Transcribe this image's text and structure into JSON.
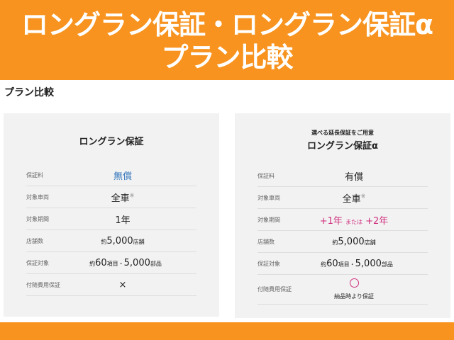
{
  "header": {
    "title_line1": "ロングラン保証・ロングラン保証α",
    "title_line2": "プラン比較"
  },
  "section_title": "プラン比較",
  "colors": {
    "brand_orange": "#f7931e",
    "blue": "#3a7bbf",
    "pink": "#d0317f"
  },
  "plans": [
    {
      "subtitle": "",
      "title": "ロングラン保証",
      "rows": [
        {
          "label": "保証料",
          "value": "無償"
        },
        {
          "label": "対象車両",
          "value": "全車",
          "note": "※"
        },
        {
          "label": "対象期間",
          "value": "1年"
        },
        {
          "label": "店舗数",
          "prefix": "約",
          "value": "5,000",
          "suffix": "店舗"
        },
        {
          "label": "保証対象",
          "prefix": "約",
          "value": "60",
          "mid": "項目・",
          "value2": "5,000",
          "suffix": "部品"
        },
        {
          "label": "付随費用保証",
          "value": "×"
        }
      ]
    },
    {
      "subtitle": "選べる延長保証をご用意",
      "title": "ロングラン保証α",
      "rows": [
        {
          "label": "保証料",
          "value": "有償"
        },
        {
          "label": "対象車両",
          "value": "全車",
          "note": "※"
        },
        {
          "label": "対象期間",
          "value": "+1年",
          "mid": "または",
          "value2": "+2年"
        },
        {
          "label": "店舗数",
          "prefix": "約",
          "value": "5,000",
          "suffix": "店舗"
        },
        {
          "label": "保証対象",
          "prefix": "約",
          "value": "60",
          "mid": "項目・",
          "value2": "5,000",
          "suffix": "部品"
        },
        {
          "label": "付随費用保証",
          "icon": "circle-icon",
          "note": "納品時より保証"
        }
      ]
    }
  ]
}
